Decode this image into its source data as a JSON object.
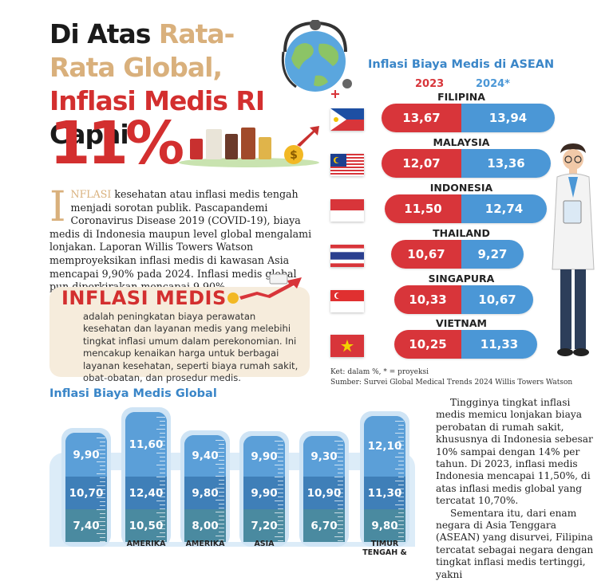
{
  "headline": {
    "part1": "Di Atas ",
    "part2": "Rata-Rata Global,",
    "part3": " Inflasi Medis RI",
    "part4": " Capai",
    "big": "11%"
  },
  "lead": {
    "dropcap": "I",
    "keyword": "NFLASI",
    "text": " kesehatan atau inflasi medis tengah menjadi sorotan publik. Pascapandemi Coronavirus Disease 2019 (COVID-19), biaya medis di Indonesia maupun level global mengalami lonjakan. Laporan Willis Towers Watson memproyeksikan inflasi medis di kawasan Asia mencapai 9,90% pada 2024. Inflasi medis global pun diperkirakan mencapai 9,90%."
  },
  "definition": {
    "title": "INFLASI MEDIS",
    "text": "adalah peningkatan biaya perawatan kesehatan dan layanan medis yang melebihi tingkat inflasi umum dalam perekonomian. Ini mencakup kenaikan harga untuk berbagai layanan kesehatan, seperti biaya rumah sakit, obat-obatan, dan prosedur medis."
  },
  "asean": {
    "title": "Inflasi Biaya Medis di ASEAN",
    "year_a": "2023",
    "year_b": "2024*",
    "note": "Ket: dalam %, * = proyeksi",
    "source": "Sumber: Survei Global Medical Trends 2024 Willis Towers Watson"
  },
  "global": {
    "title": "Inflasi Biaya Medis Global"
  },
  "right_text": {
    "p1": "Tingginya tingkat inflasi medis memicu lonjakan biaya perobatan di rumah sakit, khususnya di Indonesia sebesar 10% sampai dengan 14% per tahun. Di 2023, inflasi medis Indonesia mencapai 11,50%, di atas inflasi medis global yang tercatat 10,70%.",
    "p2": "Sementara itu, dari enam negara di Asia Tenggara (ASEAN) yang disurvei, Filipina tercatat sebagai negara dengan tingkat inflasi medis tertinggi, yakni"
  },
  "colors": {
    "red": "#d8353a",
    "blue": "#4b97d6",
    "tan": "#d9b07c",
    "title_blue": "#3a86c8",
    "tube_top": "#5b9fd8",
    "tube_mid": "#3f7fb8",
    "tube_bottom": "#4a8aa0"
  },
  "chart_data": [
    {
      "type": "bar",
      "title": "Inflasi Biaya Medis di ASEAN",
      "categories": [
        "FILIPINA",
        "MALAYSIA",
        "INDONESIA",
        "THAILAND",
        "SINGAPURA",
        "VIETNAM"
      ],
      "labels_a": [
        "13,67",
        "12,07",
        "11,50",
        "10,67",
        "10,33",
        "10,25"
      ],
      "labels_b": [
        "13,94",
        "13,36",
        "12,74",
        "9,27",
        "10,67",
        "11,33"
      ],
      "series": [
        {
          "name": "2023",
          "values": [
            13.67,
            12.07,
            11.5,
            10.67,
            10.33,
            10.25
          ]
        },
        {
          "name": "2024*",
          "values": [
            13.94,
            13.36,
            12.74,
            9.27,
            10.67,
            11.33
          ]
        }
      ]
    },
    {
      "type": "bar",
      "title": "Inflasi Biaya Medis Global",
      "categories": [
        "",
        "AMERIKA",
        "AMERIKA",
        "ASIA",
        "",
        "TIMUR TENGAH &"
      ],
      "labels_top": [
        "9,90",
        "11,60",
        "9,40",
        "9,90",
        "9,30",
        "12,10"
      ],
      "labels_mid": [
        "10,70",
        "12,40",
        "9,80",
        "9,90",
        "10,90",
        "11,30"
      ],
      "labels_bottom": [
        "7,40",
        "10,50",
        "8,00",
        "7,20",
        "6,70",
        "9,80"
      ],
      "series": [
        {
          "values": [
            9.9,
            11.6,
            9.4,
            9.9,
            9.3,
            12.1
          ]
        },
        {
          "values": [
            10.7,
            12.4,
            9.8,
            9.9,
            10.9,
            11.3
          ]
        },
        {
          "values": [
            7.4,
            10.5,
            8.0,
            7.2,
            6.7,
            9.8
          ]
        }
      ]
    }
  ]
}
